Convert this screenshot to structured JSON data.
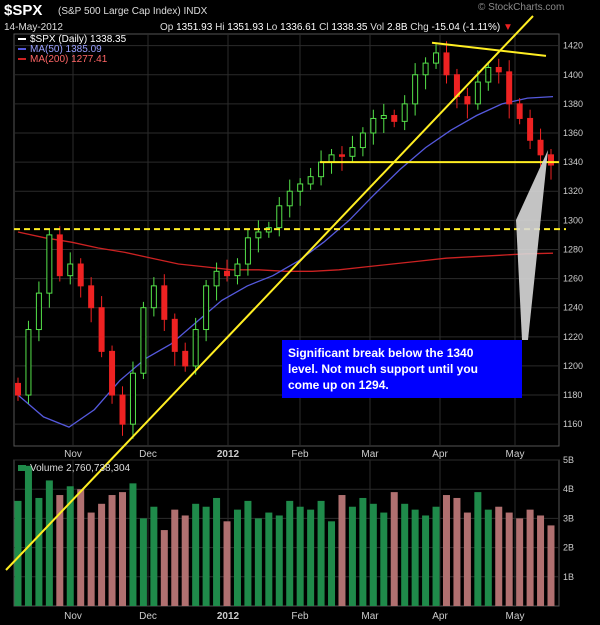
{
  "header": {
    "symbol": "$SPX",
    "name": "(S&P 500 Large Cap Index) INDX",
    "date": "14-May-2012",
    "open_label": "Op",
    "open": "1351.93",
    "high_label": "Hi",
    "high": "1351.93",
    "low_label": "Lo",
    "low": "1336.61",
    "close_label": "Cl",
    "close": "1338.35",
    "vol_label": "Vol",
    "vol": "2.8B",
    "chg_label": "Chg",
    "chg": "-15.04 (-1.11%)",
    "logo": "© StockCharts.com"
  },
  "legend": {
    "price": "$SPX (Daily) 1338.35",
    "ma50": "MA(50) 1385.09",
    "ma200": "MA(200) 1277.41",
    "volume": "Volume 2,760,738,304"
  },
  "colors": {
    "background": "#000000",
    "up": "#55e24a",
    "down": "#ee2222",
    "ma50": "#5559dd",
    "ma200": "#cc2222",
    "trendline": "#ffee22",
    "grid": "#2b2b2b",
    "axis_text": "#cccccc",
    "vol_up": "#1f8a4a",
    "vol_down": "#b07070"
  },
  "annotation": {
    "text_line1": "Significant break below the 1340",
    "text_line2": "level. Not much support until you",
    "text_line3": "come up on 1294."
  },
  "chart_data": {
    "type": "candlestick",
    "title": "$SPX (S&P 500 Large Cap Index) INDX",
    "y_axis_ticks": [
      1160,
      1180,
      1200,
      1220,
      1240,
      1260,
      1280,
      1300,
      1320,
      1340,
      1360,
      1380,
      1400,
      1420
    ],
    "ylim": [
      1145,
      1428
    ],
    "x_axis_labels": [
      "Nov",
      "Dec",
      "2012",
      "Feb",
      "Mar",
      "Apr",
      "May"
    ],
    "volume_axis_labels": [
      "1B",
      "2B",
      "3B",
      "4B",
      "5B"
    ],
    "volume_ylim": [
      0,
      5000000000
    ],
    "ma50_series": [
      1180,
      1165,
      1158,
      1170,
      1190,
      1205,
      1215,
      1230,
      1245,
      1255,
      1262,
      1272,
      1285,
      1300,
      1318,
      1335,
      1350,
      1362,
      1372,
      1380,
      1384,
      1385
    ],
    "ma200_series": [
      1292,
      1288,
      1285,
      1281,
      1278,
      1274,
      1270,
      1268,
      1266,
      1266,
      1265,
      1265,
      1266,
      1268,
      1270,
      1272,
      1274,
      1275,
      1276,
      1277,
      1277.41
    ],
    "support_level": 1340,
    "support_level_2": 1294,
    "candles_close": [
      1180,
      1225,
      1250,
      1290,
      1262,
      1270,
      1255,
      1240,
      1210,
      1180,
      1160,
      1195,
      1240,
      1255,
      1232,
      1210,
      1200,
      1225,
      1255,
      1265,
      1262,
      1270,
      1288,
      1292,
      1295,
      1310,
      1320,
      1325,
      1330,
      1340,
      1345,
      1344,
      1350,
      1360,
      1370,
      1372,
      1368,
      1380,
      1400,
      1408,
      1415,
      1400,
      1385,
      1380,
      1395,
      1405,
      1402,
      1380,
      1370,
      1355,
      1345,
      1338
    ],
    "volumes_b": [
      3.6,
      4.8,
      3.7,
      4.3,
      3.8,
      4.1,
      4.0,
      3.2,
      3.5,
      3.8,
      3.9,
      4.2,
      3.0,
      3.4,
      2.6,
      3.3,
      3.1,
      3.5,
      3.4,
      3.7,
      2.9,
      3.3,
      3.6,
      3.0,
      3.2,
      3.1,
      3.6,
      3.4,
      3.3,
      3.6,
      2.9,
      3.8,
      3.4,
      3.7,
      3.5,
      3.2,
      3.9,
      3.5,
      3.3,
      3.1,
      3.4,
      3.8,
      3.7,
      3.2,
      3.9,
      3.3,
      3.4,
      3.2,
      3.0,
      3.3,
      3.1,
      2.76
    ]
  }
}
